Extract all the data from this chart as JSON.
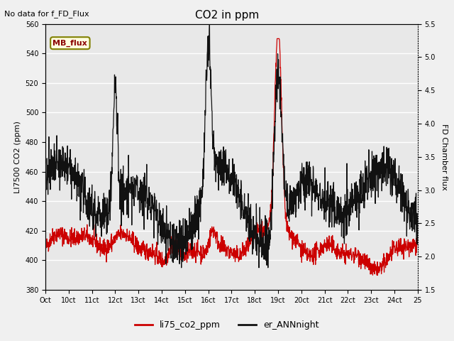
{
  "title": "CO2 in ppm",
  "top_left_text": "No data for f_FD_Flux",
  "ylabel_left": "LI7500 CO2 (ppm)",
  "ylabel_right": "FD Chamber flux",
  "ylim_left": [
    380,
    560
  ],
  "ylim_right": [
    1.5,
    5.5
  ],
  "yticks_left": [
    380,
    400,
    420,
    440,
    460,
    480,
    500,
    520,
    540,
    560
  ],
  "yticks_right": [
    1.5,
    2.0,
    2.5,
    3.0,
    3.5,
    4.0,
    4.5,
    5.0,
    5.5
  ],
  "xtick_labels": [
    "Oct",
    "10ct",
    "11ct",
    "12ct",
    "13ct",
    "14ct",
    "15ct",
    "16ct",
    "17ct",
    "18ct",
    "19ct",
    "20ct",
    "21ct",
    "22ct",
    "23ct",
    "24ct",
    "25"
  ],
  "legend_label_red": "li75_co2_ppm",
  "legend_label_black": "er_ANNnight",
  "legend_box_label": "MB_flux",
  "bg_color": "#f0f0f0",
  "plot_bg_color": "#e8e8e8",
  "grid_color": "white",
  "line_red": "#cc0000",
  "line_black": "#111111"
}
